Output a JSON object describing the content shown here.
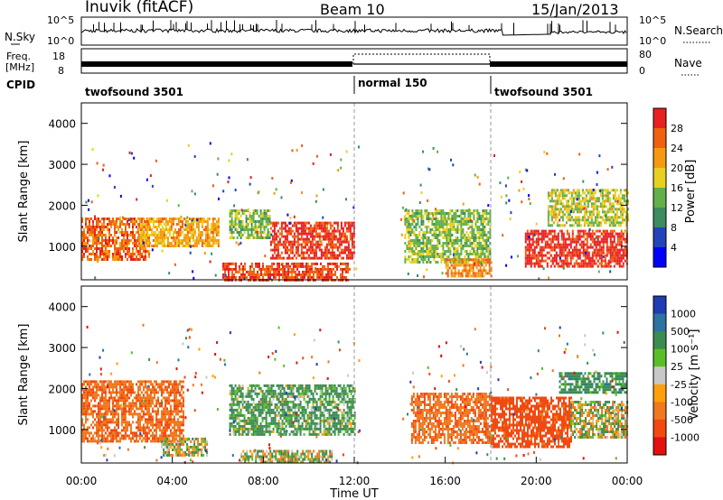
{
  "header": {
    "title": "Inuvik (fitACF)",
    "beam": "Beam 10",
    "date": "15/Jan/2013"
  },
  "noise_panel": {
    "left_label": "N.Sky",
    "right_label": "N.Search",
    "left_ticks": [
      "10^5",
      "10^0"
    ],
    "right_ticks": [
      "10^5",
      "10^0"
    ]
  },
  "freq_panel": {
    "left_label_1": "Freq.",
    "left_label_2": "[MHz]",
    "right_label": "Nave",
    "left_ticks": [
      "18",
      "8"
    ],
    "right_ticks": [
      "80",
      "0"
    ]
  },
  "cpid": {
    "label": "CPID",
    "segments": [
      {
        "name": "twofsound 3501",
        "start_h": 0,
        "end_h": 12
      },
      {
        "name": "normal 150",
        "start_h": 12,
        "end_h": 18
      },
      {
        "name": "twofsound 3501",
        "start_h": 18,
        "end_h": 24
      }
    ]
  },
  "x_axis": {
    "label": "Time UT",
    "ticks": [
      "00:00",
      "04:00",
      "08:00",
      "12:00",
      "16:00",
      "20:00",
      "00:00"
    ]
  },
  "power_panel": {
    "ylabel": "Slant Range [km]",
    "yticks": [
      "4000",
      "3000",
      "2000",
      "1000"
    ],
    "colorbar_label": "Power [dB]",
    "colorbar_ticks": [
      "28",
      "24",
      "20",
      "16",
      "12",
      "8",
      "4"
    ]
  },
  "velocity_panel": {
    "ylabel": "Slant Range [km]",
    "yticks": [
      "4000",
      "3000",
      "2000",
      "1000"
    ],
    "colorbar_label": "Velocity [m s⁻¹]",
    "colorbar_ticks": [
      "1000",
      "500",
      "100",
      "25",
      "-25",
      "-100",
      "-500",
      "-1000"
    ]
  },
  "colors": {
    "power_scale": [
      "#0000ff",
      "#2244bb",
      "#3c8c60",
      "#62b04a",
      "#e8d020",
      "#f59a10",
      "#f06010",
      "#e82020"
    ],
    "velocity_scale": [
      "#e60f0f",
      "#f04a12",
      "#f0781e",
      "#ffa00a",
      "#c8c8c8",
      "#5abe28",
      "#3c8c50",
      "#2b73a0",
      "#1e3cb4"
    ]
  },
  "chart_data": [
    {
      "type": "heatmap",
      "title": "Power",
      "xlabel": "Time UT",
      "ylabel": "Slant Range [km]",
      "xlim": [
        0,
        24
      ],
      "ylim": [
        180,
        4500
      ],
      "clim": [
        0,
        30
      ],
      "colorbar": {
        "label": "Power [dB]",
        "ticks": [
          4,
          8,
          12,
          16,
          20,
          24,
          28
        ]
      },
      "regions": [
        {
          "t": [
            0,
            3
          ],
          "range_km": [
            700,
            1700
          ],
          "value": 24
        },
        {
          "t": [
            2.5,
            6
          ],
          "range_km": [
            1000,
            1700
          ],
          "value": 20
        },
        {
          "t": [
            6.5,
            8.3
          ],
          "range_km": [
            1200,
            1900
          ],
          "value": 14
        },
        {
          "t": [
            8.3,
            12
          ],
          "range_km": [
            700,
            1600
          ],
          "value": 27
        },
        {
          "t": [
            6.2,
            11.8
          ],
          "range_km": [
            200,
            600
          ],
          "value": 26
        },
        {
          "t": [
            14.2,
            18
          ],
          "range_km": [
            600,
            1900
          ],
          "value": 14
        },
        {
          "t": [
            16,
            18
          ],
          "range_km": [
            300,
            700
          ],
          "value": 22
        },
        {
          "t": [
            19.5,
            24
          ],
          "range_km": [
            500,
            1400
          ],
          "value": 28
        },
        {
          "t": [
            20.5,
            24
          ],
          "range_km": [
            1500,
            2400
          ],
          "value": 16
        }
      ]
    },
    {
      "type": "heatmap",
      "title": "Velocity",
      "xlabel": "Time UT",
      "ylabel": "Slant Range [km]",
      "xlim": [
        0,
        24
      ],
      "ylim": [
        180,
        4500
      ],
      "clim": [
        -1000,
        1000
      ],
      "colorbar": {
        "label": "Velocity [m s⁻¹]",
        "ticks": [
          1000,
          500,
          100,
          25,
          -25,
          -100,
          -500,
          -1000
        ]
      },
      "regions": [
        {
          "t": [
            0,
            4.5
          ],
          "range_km": [
            700,
            2200
          ],
          "value": -400
        },
        {
          "t": [
            6.5,
            12
          ],
          "range_km": [
            900,
            2100
          ],
          "value": 200
        },
        {
          "t": [
            3.5,
            5.5
          ],
          "range_km": [
            400,
            800
          ],
          "value": 0
        },
        {
          "t": [
            14.5,
            18
          ],
          "range_km": [
            700,
            1900
          ],
          "value": -400
        },
        {
          "t": [
            18,
            21.5
          ],
          "range_km": [
            600,
            1800
          ],
          "value": -700
        },
        {
          "t": [
            21.5,
            24
          ],
          "range_km": [
            800,
            1700
          ],
          "value": 0
        },
        {
          "t": [
            7,
            11
          ],
          "range_km": [
            200,
            500
          ],
          "value": 0
        },
        {
          "t": [
            21,
            24
          ],
          "range_km": [
            1900,
            2400
          ],
          "value": 300
        }
      ]
    }
  ]
}
